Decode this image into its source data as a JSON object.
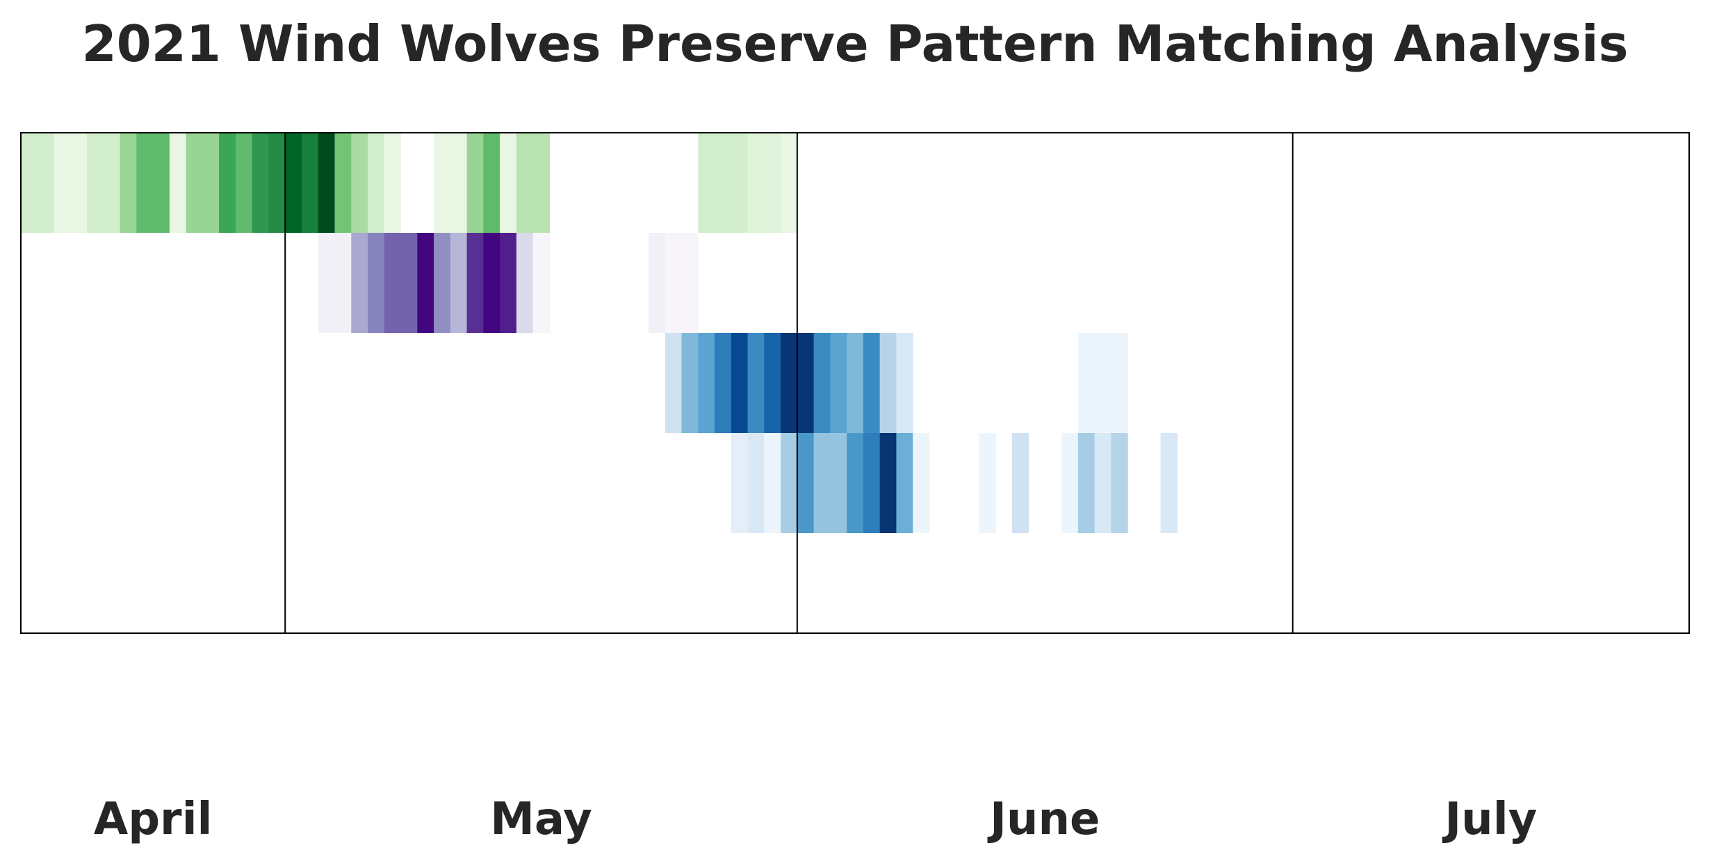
{
  "chart_data": {
    "type": "heatmap",
    "title": "2021 Wind Wolves Preserve Pattern Matching Analysis",
    "xlabel": "",
    "ylabel": "",
    "x_axis_labels": [
      "April",
      "May",
      "June",
      "July"
    ],
    "date_range": [
      "2021-04-15",
      "2021-07-24"
    ],
    "month_boundaries": [
      "2021-05-01",
      "2021-06-01",
      "2021-07-01"
    ],
    "grid": false,
    "legend": false,
    "value_range": [
      0,
      1
    ],
    "rows": [
      {
        "colormap": "greens",
        "start_date": "2021-04-15",
        "values": [
          0.2,
          0.2,
          0.1,
          0.1,
          0.2,
          0.2,
          0.4,
          0.55,
          0.55,
          0.1,
          0.4,
          0.4,
          0.65,
          0.55,
          0.7,
          0.75,
          0.9,
          0.8,
          0.98,
          0.5,
          0.35,
          0.2,
          0.1,
          0.0,
          0.0,
          0.1,
          0.1,
          0.4,
          0.55,
          0.1,
          0.3,
          0.3,
          0.0,
          0.0,
          0.0,
          0.0,
          0.0,
          0.0,
          0.0,
          0.0,
          0.0,
          0.2,
          0.2,
          0.2,
          0.15,
          0.15,
          0.1,
          0.0,
          0.0,
          0.0,
          0.0,
          0.0,
          0.0,
          0.0,
          0.0,
          0.0,
          0.0,
          0.0,
          0.0,
          0.0,
          0.0,
          0.0,
          0.0,
          0.0,
          0.0,
          0.0,
          0.0,
          0.0,
          0.0,
          0.0,
          0.0,
          0.0,
          0.0,
          0.0,
          0.0,
          0.0,
          0.0,
          0.0,
          0.0,
          0.0,
          0.0,
          0.0,
          0.0,
          0.0,
          0.0,
          0.0,
          0.0,
          0.0,
          0.0,
          0.0,
          0.0,
          0.0,
          0.0,
          0.0,
          0.0,
          0.0,
          0.0,
          0.0,
          0.0,
          0.0,
          0.0
        ]
      },
      {
        "colormap": "purples",
        "start_date": "2021-05-03",
        "values": [
          0.1,
          0.1,
          0.45,
          0.6,
          0.7,
          0.7,
          0.98,
          0.55,
          0.4,
          0.85,
          0.98,
          0.9,
          0.25,
          0.05,
          0.0,
          0.0,
          0.0,
          0.0,
          0.0,
          0.0,
          0.1,
          0.05,
          0.05
        ]
      },
      {
        "colormap": "blues",
        "start_date": "2021-05-24",
        "values": [
          0.2,
          0.45,
          0.55,
          0.7,
          0.9,
          0.65,
          0.8,
          0.98,
          0.98,
          0.65,
          0.55,
          0.45,
          0.65,
          0.3,
          0.15,
          0.0,
          0.0,
          0.0,
          0.0,
          0.0,
          0.0,
          0.0,
          0.0,
          0.0,
          0.0,
          0.05,
          0.05,
          0.05
        ]
      },
      {
        "colormap": "blues",
        "start_date": "2021-05-28",
        "values": [
          0.1,
          0.15,
          0.05,
          0.35,
          0.6,
          0.4,
          0.4,
          0.6,
          0.7,
          0.98,
          0.5,
          0.05,
          0.0,
          0.0,
          0.0,
          0.05,
          0.0,
          0.2,
          0.0,
          0.0,
          0.05,
          0.35,
          0.15,
          0.3,
          0.0,
          0.0,
          0.15
        ]
      },
      {
        "colormap": "blues",
        "start_date": "2021-07-24",
        "values": []
      }
    ]
  }
}
